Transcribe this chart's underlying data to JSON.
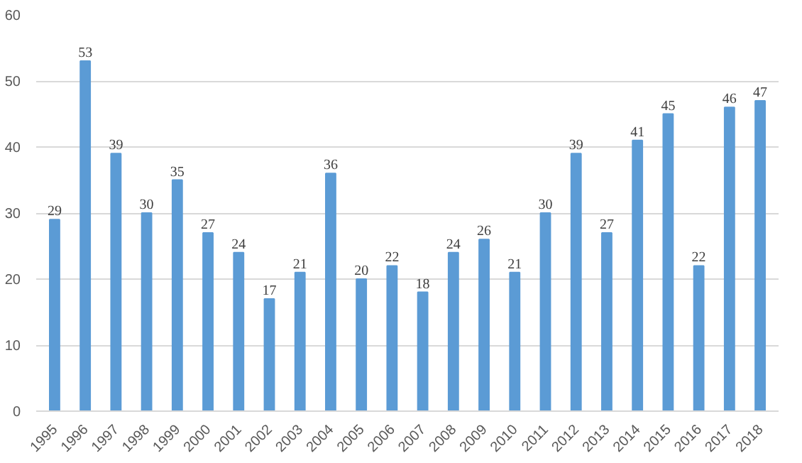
{
  "chart_data": {
    "type": "bar",
    "categories": [
      "1995",
      "1996",
      "1997",
      "1998",
      "1999",
      "2000",
      "2001",
      "2002",
      "2003",
      "2004",
      "2005",
      "2006",
      "2007",
      "2008",
      "2009",
      "2010",
      "2011",
      "2012",
      "2013",
      "2014",
      "2015",
      "2016",
      "2017",
      "2018"
    ],
    "values": [
      29,
      53,
      39,
      30,
      35,
      27,
      24,
      17,
      21,
      36,
      20,
      22,
      18,
      24,
      26,
      21,
      30,
      39,
      27,
      41,
      45,
      22,
      46,
      47
    ],
    "color": "#5b9bd5",
    "ylim": [
      0,
      60
    ],
    "yticks": [
      0,
      10,
      20,
      30,
      40,
      50,
      60
    ],
    "grid": "y",
    "data_labels": true
  }
}
